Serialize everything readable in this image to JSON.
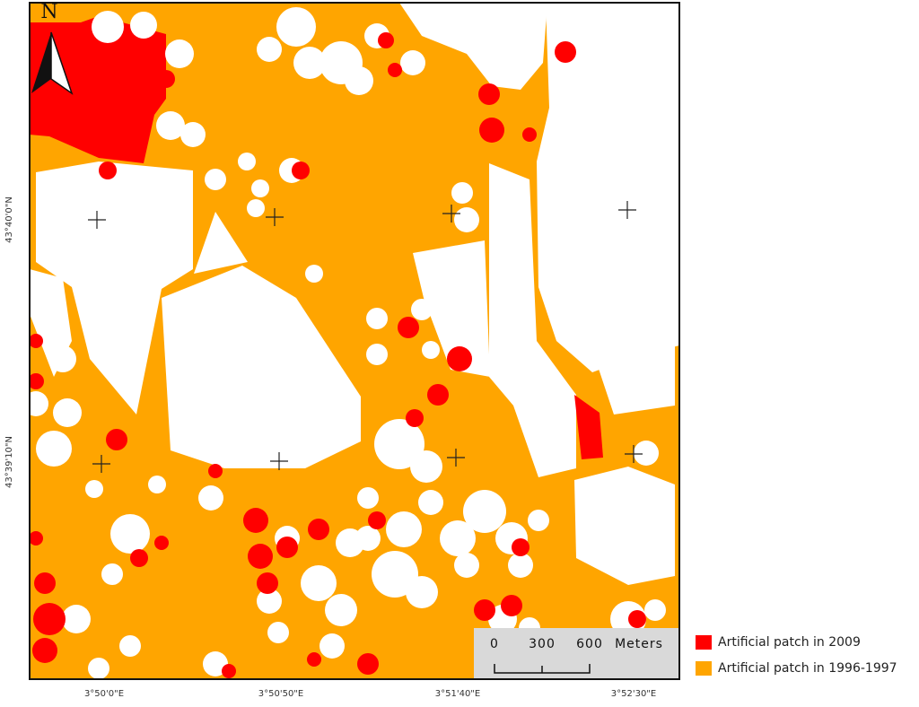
{
  "map": {
    "north_label": "N",
    "latitude_labels": [
      "43°40'0\"N",
      "43°39'10\"N"
    ],
    "longitude_labels": [
      "3°50'0\"E",
      "3°50'50\"E",
      "3°51'40\"E",
      "3°52'30\"E"
    ],
    "scale_bar": {
      "labels": [
        "0",
        "300",
        "600"
      ],
      "unit": "Meters"
    },
    "legend": [
      {
        "label": "Artificial patch in 2009",
        "color": "#ff0000"
      },
      {
        "label": "Artificial patch in 1996-1997",
        "color": "#ffa500"
      }
    ]
  }
}
